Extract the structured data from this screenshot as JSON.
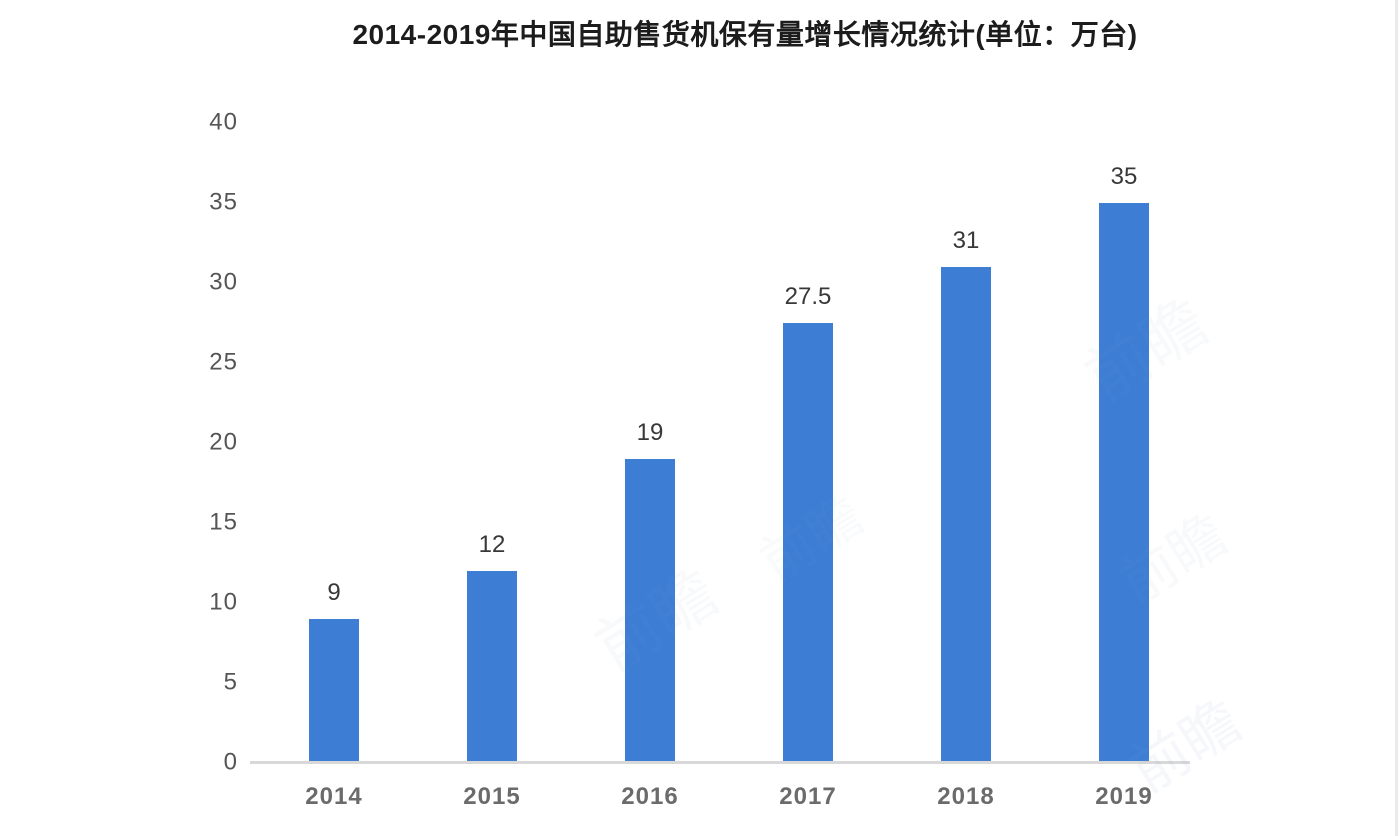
{
  "chart_data": {
    "type": "bar",
    "title": "2014-2019年中国自助售货机保有量增长情况统计(单位：万台)",
    "categories": [
      "2014",
      "2015",
      "2016",
      "2017",
      "2018",
      "2019"
    ],
    "values": [
      9,
      12,
      19,
      27.5,
      31,
      35
    ],
    "xlabel": "",
    "ylabel": "",
    "ylim": [
      0,
      40
    ],
    "yticks": [
      0,
      5,
      10,
      15,
      20,
      25,
      30,
      35,
      40
    ],
    "grid": false,
    "legend": null,
    "bar_color": "#3d7ed4",
    "axis_line_color": "#d8d8d8",
    "value_label_color": "#383838",
    "tick_label_color": "#555555",
    "title_color": "#1c1c1c"
  },
  "watermark": {
    "text": "前瞻"
  }
}
